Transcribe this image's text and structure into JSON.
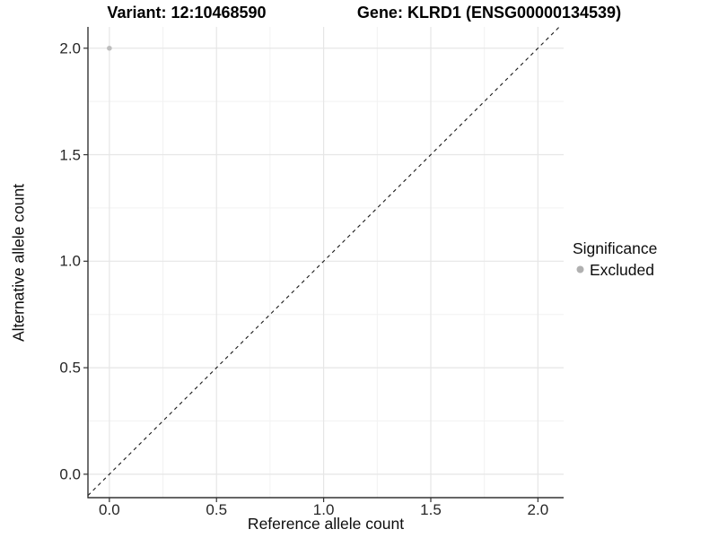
{
  "header": {
    "variant_title": "Variant: 12:10468590",
    "gene_title": "Gene: KLRD1 (ENSG00000134539)"
  },
  "axes": {
    "x_label": "Reference allele count",
    "y_label": "Alternative allele count"
  },
  "legend": {
    "title": "Significance",
    "position": "right",
    "items": [
      {
        "label": "Excluded",
        "color": "#b0b0b0"
      }
    ]
  },
  "colors": {
    "background": "#ffffff",
    "grid_major": "#e6e6e6",
    "grid_minor": "#f2f2f2",
    "axis_line": "#333333",
    "tick_mark": "#333333",
    "reference_line": "#1a1a1a",
    "point": "#bdbdbd",
    "title_text": "#000000",
    "tick_text": "#262626"
  },
  "chart_data": {
    "type": "scatter",
    "title": "Variant: 12:10468590   Gene: KLRD1 (ENSG00000134539)",
    "xlabel": "Reference allele count",
    "ylabel": "Alternative allele count",
    "xlim": [
      -0.1,
      2.12
    ],
    "ylim": [
      -0.11,
      2.1
    ],
    "x_ticks": [
      0.0,
      0.5,
      1.0,
      1.5,
      2.0
    ],
    "y_ticks": [
      0.0,
      0.5,
      1.0,
      1.5,
      2.0
    ],
    "x_tick_labels": [
      "0.0",
      "0.5",
      "1.0",
      "1.5",
      "2.0"
    ],
    "y_tick_labels": [
      "0.0",
      "0.5",
      "1.0",
      "1.5",
      "2.0"
    ],
    "minor_ticks": [
      0.25,
      0.75,
      1.25,
      1.75
    ],
    "grid": true,
    "legend_position": "right",
    "series": [
      {
        "name": "Excluded",
        "color": "#bdbdbd",
        "points": [
          {
            "x": 0.0,
            "y": 2.0
          }
        ]
      }
    ],
    "reference_line": {
      "type": "identity",
      "style": "dashed",
      "from": [
        -0.1,
        -0.1
      ],
      "to": [
        2.1,
        2.1
      ]
    }
  }
}
